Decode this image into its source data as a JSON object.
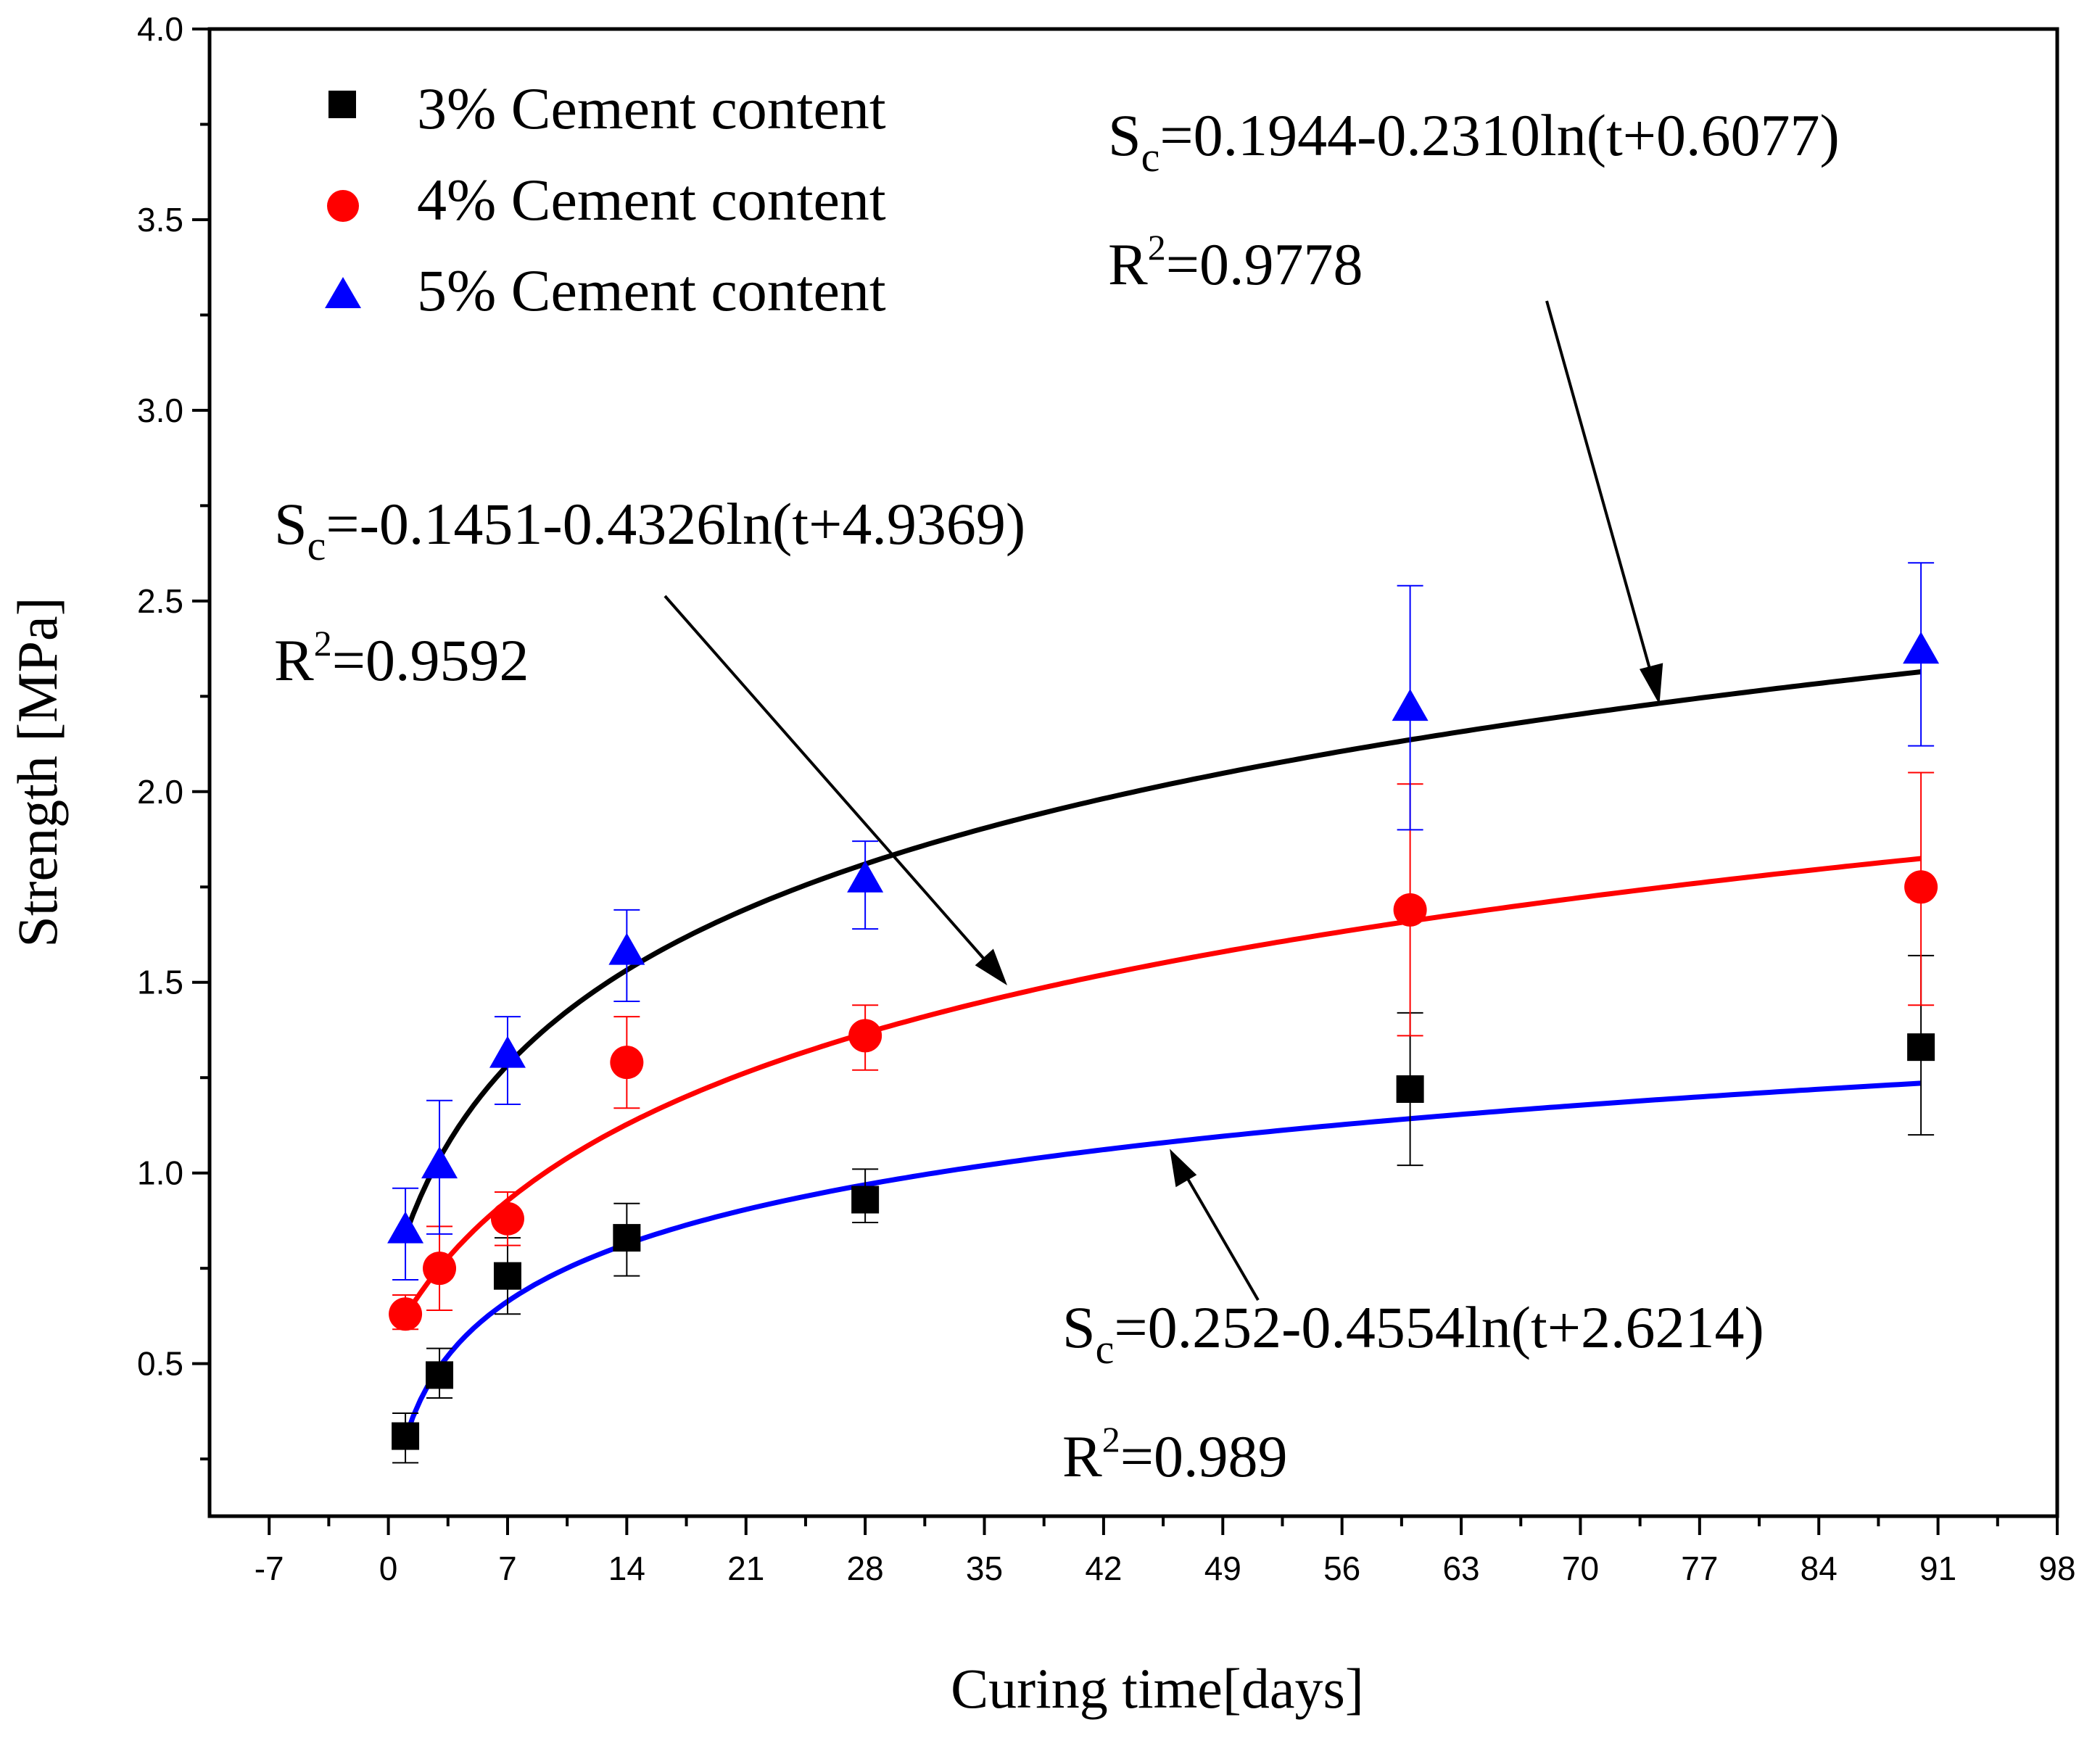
{
  "chart_data": {
    "type": "scatter",
    "xlabel": "Curing time[days]",
    "ylabel": "Strength [MPa]",
    "xlim": [
      -10.5,
      98
    ],
    "ylim": [
      0.1,
      4.0
    ],
    "x_ticks": [
      "-7",
      "0",
      "7",
      "14",
      "21",
      "28",
      "35",
      "42",
      "49",
      "56",
      "63",
      "70",
      "77",
      "84",
      "91",
      "98"
    ],
    "y_ticks": [
      "0.5",
      "1.0",
      "1.5",
      "2.0",
      "2.5",
      "3.0",
      "3.5",
      "4.0"
    ],
    "series": [
      {
        "name": "3% Cement content",
        "color": "#000000",
        "marker": "square",
        "x": [
          1,
          3,
          7,
          14,
          28,
          60,
          90
        ],
        "y": [
          0.31,
          0.47,
          0.73,
          0.83,
          0.93,
          1.22,
          1.33
        ],
        "err_low": [
          0.24,
          0.41,
          0.63,
          0.73,
          0.87,
          1.02,
          1.1
        ],
        "err_high": [
          0.37,
          0.54,
          0.83,
          0.92,
          1.01,
          1.42,
          1.57
        ],
        "fit": {
          "a": 0.252,
          "b": 0.4554,
          "c": 2.6214,
          "x_start": 1,
          "x_end": 90
        }
      },
      {
        "name": "4% Cement content",
        "color": "#ff0000",
        "marker": "circle",
        "x": [
          1,
          3,
          7,
          14,
          28,
          60,
          90
        ],
        "y": [
          0.63,
          0.75,
          0.88,
          1.29,
          1.36,
          1.69,
          1.75
        ],
        "err_low": [
          0.59,
          0.64,
          0.81,
          1.17,
          1.27,
          1.36,
          1.44
        ],
        "err_high": [
          0.68,
          0.86,
          0.95,
          1.41,
          1.44,
          2.02,
          2.05
        ],
        "fit": {
          "a": -0.1451,
          "b": 0.4326,
          "c": 4.9369,
          "x_start": 1,
          "x_end": 90
        }
      },
      {
        "name": "5% Cement content",
        "color": "#0000ff",
        "marker": "triangle",
        "x": [
          1,
          3,
          7,
          14,
          28,
          60,
          90
        ],
        "y": [
          0.85,
          1.02,
          1.31,
          1.58,
          1.77,
          2.22,
          2.37
        ],
        "err_low": [
          0.72,
          0.84,
          1.18,
          1.45,
          1.64,
          1.9,
          2.12
        ],
        "err_high": [
          0.96,
          1.19,
          1.41,
          1.69,
          1.87,
          2.54,
          2.6
        ],
        "fit": {
          "a": 0.1944,
          "b": 0.231,
          "c": 0.6077,
          "x_start": 1,
          "x_end": 90
        }
      }
    ],
    "annotations": [
      {
        "name": "eq-5pct",
        "s": "S",
        "sub": "c",
        "formula": "=0.1944-0.2310ln(t+0.6077)",
        "r": "R",
        "sup": "2",
        "r2": "=0.9778"
      },
      {
        "name": "eq-4pct",
        "s": "S",
        "sub": "c",
        "formula": "=-0.1451-0.4326ln(t+4.9369)",
        "r": "R",
        "sup": "2",
        "r2": "=0.9592"
      },
      {
        "name": "eq-3pct",
        "s": "S",
        "sub": "c",
        "formula": "=0.252-0.4554ln(t+2.6214)",
        "r": "R",
        "sup": "2",
        "r2": "=0.989"
      }
    ]
  }
}
